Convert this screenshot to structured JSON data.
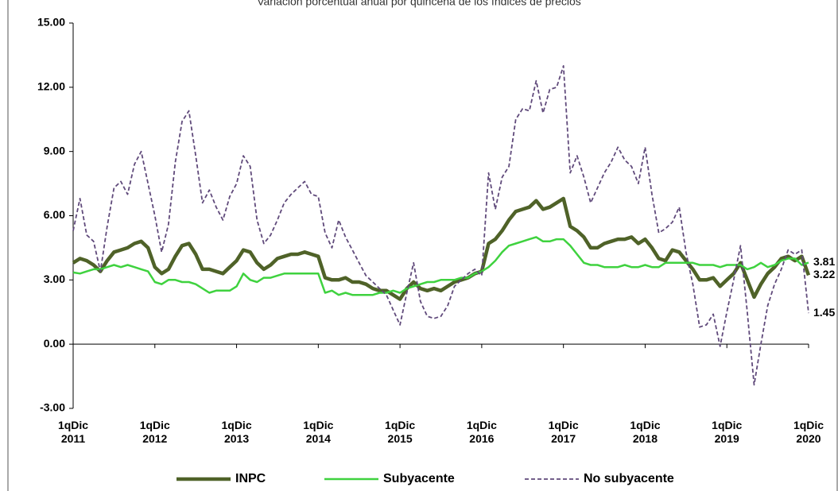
{
  "chart_data": {
    "type": "line",
    "title": "Variación porcentual anual por quincena de los índices de precios",
    "categories": [
      "1qDic 2011",
      null,
      null,
      null,
      null,
      null,
      null,
      null,
      null,
      null,
      null,
      null,
      "1qDic 2012",
      null,
      null,
      null,
      null,
      null,
      null,
      null,
      null,
      null,
      null,
      null,
      "1qDic 2013",
      null,
      null,
      null,
      null,
      null,
      null,
      null,
      null,
      null,
      null,
      null,
      "1qDic 2014",
      null,
      null,
      null,
      null,
      null,
      null,
      null,
      null,
      null,
      null,
      null,
      "1qDic 2015",
      null,
      null,
      null,
      null,
      null,
      null,
      null,
      null,
      null,
      null,
      null,
      "1qDic 2016",
      null,
      null,
      null,
      null,
      null,
      null,
      null,
      null,
      null,
      null,
      null,
      "1qDic 2017",
      null,
      null,
      null,
      null,
      null,
      null,
      null,
      null,
      null,
      null,
      null,
      "1qDic 2018",
      null,
      null,
      null,
      null,
      null,
      null,
      null,
      null,
      null,
      null,
      null,
      "1qDic 2019",
      null,
      null,
      null,
      null,
      null,
      null,
      null,
      null,
      null,
      null,
      null,
      "1qDic 2020"
    ],
    "series": [
      {
        "name": "INPC",
        "color": "#4f6228",
        "width": 4.5,
        "dash": false,
        "values": [
          3.8,
          4.0,
          3.9,
          3.7,
          3.4,
          3.9,
          4.3,
          4.4,
          4.5,
          4.7,
          4.8,
          4.5,
          3.6,
          3.3,
          3.5,
          4.1,
          4.6,
          4.7,
          4.2,
          3.5,
          3.5,
          3.4,
          3.3,
          3.6,
          3.9,
          4.4,
          4.3,
          3.8,
          3.5,
          3.7,
          4.0,
          4.1,
          4.2,
          4.2,
          4.3,
          4.2,
          4.1,
          3.1,
          3.0,
          3.0,
          3.1,
          2.9,
          2.9,
          2.8,
          2.6,
          2.5,
          2.5,
          2.3,
          2.1,
          2.6,
          2.9,
          2.6,
          2.5,
          2.6,
          2.5,
          2.7,
          2.9,
          3.0,
          3.1,
          3.3,
          3.4,
          4.7,
          4.9,
          5.3,
          5.8,
          6.2,
          6.3,
          6.4,
          6.7,
          6.3,
          6.4,
          6.6,
          6.8,
          5.5,
          5.3,
          5.0,
          4.5,
          4.5,
          4.7,
          4.8,
          4.9,
          4.9,
          5.0,
          4.7,
          4.9,
          4.5,
          4.0,
          3.9,
          4.4,
          4.3,
          3.9,
          3.5,
          3.0,
          3.0,
          3.1,
          2.7,
          3.0,
          3.3,
          3.8,
          3.0,
          2.2,
          2.8,
          3.3,
          3.6,
          4.0,
          4.1,
          3.9,
          4.1,
          3.22
        ]
      },
      {
        "name": "Subyacente",
        "color": "#3fd23f",
        "width": 2.5,
        "dash": false,
        "values": [
          3.35,
          3.3,
          3.4,
          3.5,
          3.5,
          3.6,
          3.7,
          3.6,
          3.7,
          3.6,
          3.5,
          3.4,
          2.9,
          2.8,
          3.0,
          3.0,
          2.9,
          2.9,
          2.8,
          2.6,
          2.4,
          2.5,
          2.5,
          2.5,
          2.7,
          3.3,
          3.0,
          2.9,
          3.1,
          3.1,
          3.2,
          3.3,
          3.3,
          3.3,
          3.3,
          3.3,
          3.3,
          2.4,
          2.5,
          2.3,
          2.4,
          2.3,
          2.3,
          2.3,
          2.3,
          2.4,
          2.4,
          2.5,
          2.4,
          2.6,
          2.7,
          2.8,
          2.9,
          2.9,
          3.0,
          3.0,
          3.0,
          3.1,
          3.1,
          3.3,
          3.4,
          3.6,
          3.9,
          4.3,
          4.6,
          4.7,
          4.8,
          4.9,
          5.0,
          4.8,
          4.8,
          4.9,
          4.9,
          4.6,
          4.2,
          3.8,
          3.7,
          3.7,
          3.6,
          3.6,
          3.6,
          3.7,
          3.6,
          3.6,
          3.7,
          3.6,
          3.6,
          3.8,
          3.8,
          3.8,
          3.8,
          3.8,
          3.7,
          3.7,
          3.7,
          3.6,
          3.7,
          3.7,
          3.7,
          3.5,
          3.6,
          3.8,
          3.6,
          3.7,
          3.9,
          4.0,
          4.0,
          3.7,
          3.81
        ]
      },
      {
        "name": "No subyacente",
        "color": "#604a7b",
        "width": 1.8,
        "dash": true,
        "values": [
          5.3,
          6.8,
          5.1,
          4.8,
          3.4,
          5.5,
          7.3,
          7.6,
          7.0,
          8.4,
          9.0,
          7.5,
          6.0,
          4.3,
          5.6,
          8.5,
          10.4,
          10.9,
          8.8,
          6.6,
          7.2,
          6.4,
          5.8,
          6.9,
          7.5,
          8.8,
          8.3,
          5.8,
          4.7,
          5.1,
          5.8,
          6.6,
          7.0,
          7.3,
          7.6,
          7.0,
          6.9,
          5.2,
          4.5,
          5.8,
          5.0,
          4.4,
          3.8,
          3.2,
          2.9,
          2.6,
          2.3,
          1.6,
          0.9,
          2.4,
          3.8,
          2.0,
          1.3,
          1.2,
          1.3,
          1.8,
          2.7,
          3.0,
          3.3,
          3.5,
          3.2,
          8.0,
          6.3,
          7.8,
          8.3,
          10.5,
          11.0,
          10.9,
          12.3,
          10.8,
          11.9,
          12.0,
          13.0,
          8.0,
          8.8,
          7.8,
          6.6,
          7.3,
          8.0,
          8.5,
          9.2,
          8.6,
          8.3,
          7.5,
          9.2,
          7.0,
          5.2,
          5.4,
          5.7,
          6.4,
          4.3,
          2.8,
          0.8,
          0.9,
          1.4,
          -0.1,
          1.5,
          3.0,
          4.6,
          1.5,
          -1.9,
          0.0,
          1.8,
          2.8,
          3.5,
          4.4,
          4.2,
          4.4,
          1.45
        ]
      }
    ],
    "ylim": [
      -3,
      15
    ],
    "yticks": [
      {
        "value": -3,
        "label": "-3.00"
      },
      {
        "value": 0,
        "label": "0.00"
      },
      {
        "value": 3,
        "label": "3.00"
      },
      {
        "value": 6,
        "label": "6.00"
      },
      {
        "value": 9,
        "label": "9.00"
      },
      {
        "value": 12,
        "label": "12.00"
      },
      {
        "value": 15,
        "label": "15.00"
      }
    ],
    "grid": false,
    "legend": "bottom"
  }
}
